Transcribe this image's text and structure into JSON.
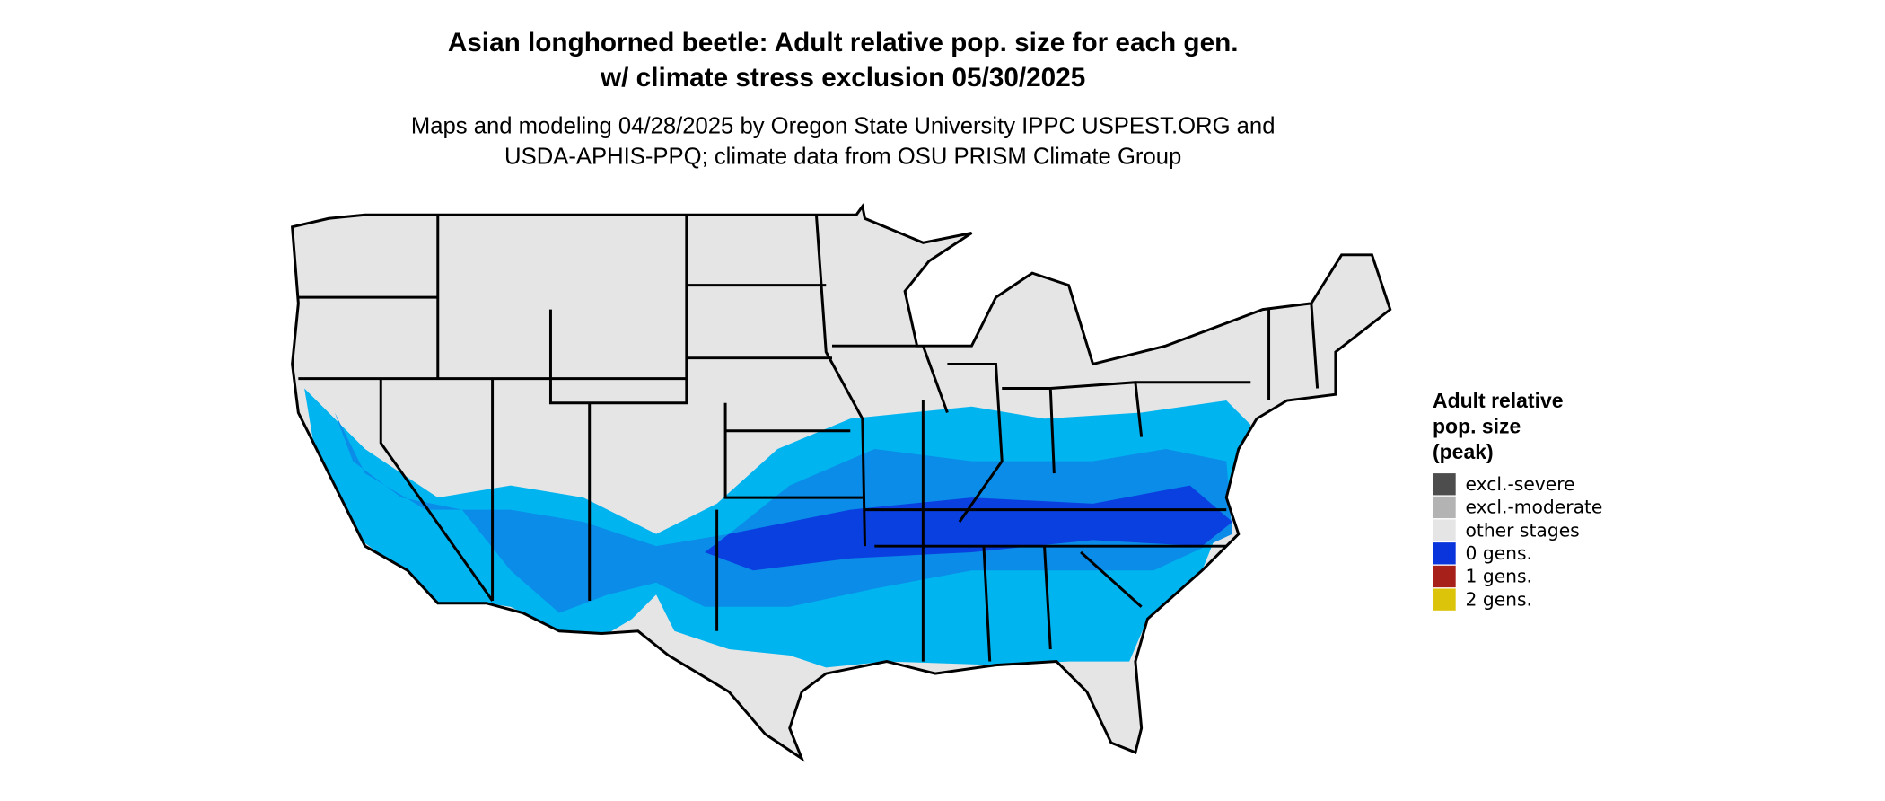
{
  "title": [
    "Asian longhorned beetle: Adult relative pop. size for each gen.",
    "w/ climate stress exclusion 05/30/2025"
  ],
  "subtitle": [
    "Maps and modeling 04/28/2025 by Oregon State University IPPC USPEST.ORG and",
    "USDA-APHIS-PPQ; climate data from OSU PRISM Climate Group"
  ],
  "legend": {
    "title": [
      "Adult relative",
      "pop. size",
      "(peak)"
    ],
    "items": [
      {
        "label": "excl.-severe",
        "color": "#4d4d4d"
      },
      {
        "label": "excl.-moderate",
        "color": "#b3b3b3"
      },
      {
        "label": "other stages",
        "color": "#e5e5e5"
      },
      {
        "label": "0 gens.",
        "color": "#0a34dc"
      },
      {
        "label": "1 gens.",
        "color": "#a8201a"
      },
      {
        "label": "2 gens.",
        "color": "#dcc40a"
      }
    ]
  }
}
